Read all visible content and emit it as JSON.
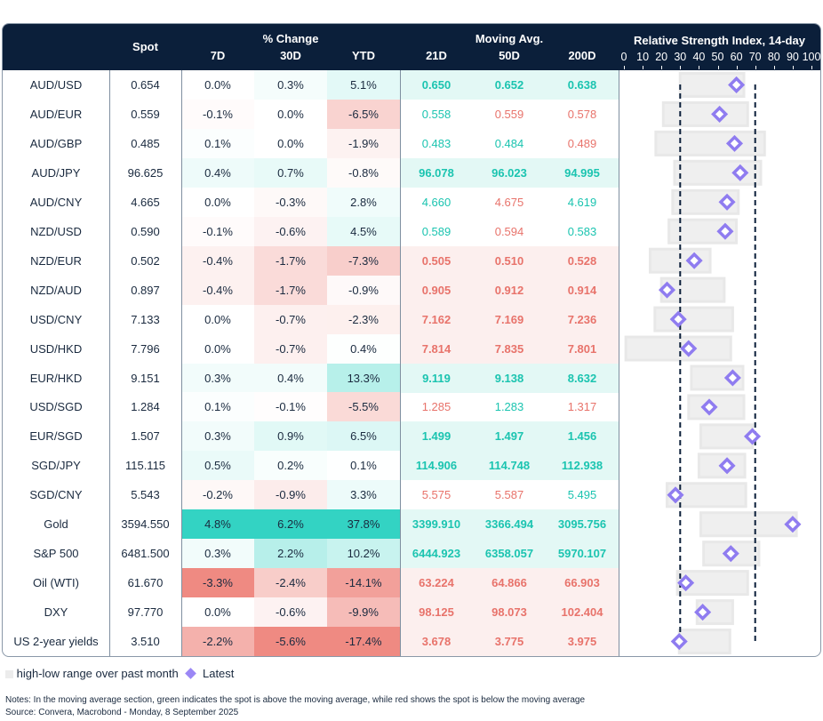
{
  "header": {
    "spot": "Spot",
    "pct_change": "% Change",
    "d7": "7D",
    "d30": "30D",
    "ytd": "YTD",
    "moving_avg": "Moving Avg.",
    "ma21": "21D",
    "ma50": "50D",
    "ma200": "200D",
    "rsi_title": "Relative Strength Index, 14-day",
    "rsi_ticks": [
      "0",
      "10",
      "20",
      "30",
      "40",
      "50",
      "60",
      "70",
      "80",
      "90",
      "100"
    ]
  },
  "colors": {
    "navy": "#0b1f3a",
    "up_text": "#1bc4b0",
    "down_text": "#e8736b",
    "up_fill": "#33d3c3",
    "down_fill": "#ef8a82",
    "up_row": "#e3f8f5",
    "down_row": "#fcefee",
    "range": "#efefef",
    "latest": "#8f7cf0"
  },
  "rsi_chart": {
    "type": "range-dot",
    "xlim": [
      0,
      100
    ],
    "reference_lines": [
      30,
      70
    ]
  },
  "rows": [
    {
      "name": "AUD/USD",
      "spot": "0.654",
      "d7": "0.0%",
      "d30": "0.3%",
      "ytd": "5.1%",
      "ma21": "0.650",
      "ma50": "0.652",
      "ma200": "0.638",
      "rsi_low": 30,
      "rsi_high": 64,
      "rsi_latest": 60
    },
    {
      "name": "AUD/EUR",
      "spot": "0.559",
      "d7": "-0.1%",
      "d30": "0.0%",
      "ytd": "-6.5%",
      "ma21": "0.558",
      "ma50": "0.559",
      "ma200": "0.578",
      "rsi_low": 21,
      "rsi_high": 66,
      "rsi_latest": 51
    },
    {
      "name": "AUD/GBP",
      "spot": "0.485",
      "d7": "0.1%",
      "d30": "0.0%",
      "ytd": "-1.9%",
      "ma21": "0.483",
      "ma50": "0.484",
      "ma200": "0.489",
      "rsi_low": 17,
      "rsi_high": 75,
      "rsi_latest": 59
    },
    {
      "name": "AUD/JPY",
      "spot": "96.625",
      "d7": "0.4%",
      "d30": "0.7%",
      "ytd": "-0.8%",
      "ma21": "96.078",
      "ma50": "96.023",
      "ma200": "94.995",
      "rsi_low": 27,
      "rsi_high": 73,
      "rsi_latest": 62
    },
    {
      "name": "AUD/CNY",
      "spot": "4.665",
      "d7": "0.0%",
      "d30": "-0.3%",
      "ytd": "2.8%",
      "ma21": "4.660",
      "ma50": "4.675",
      "ma200": "4.619",
      "rsi_low": 26,
      "rsi_high": 61,
      "rsi_latest": 55
    },
    {
      "name": "NZD/USD",
      "spot": "0.590",
      "d7": "-0.1%",
      "d30": "-0.6%",
      "ytd": "4.5%",
      "ma21": "0.589",
      "ma50": "0.594",
      "ma200": "0.583",
      "rsi_low": 24,
      "rsi_high": 60,
      "rsi_latest": 54
    },
    {
      "name": "NZD/EUR",
      "spot": "0.502",
      "d7": "-0.4%",
      "d30": "-1.7%",
      "ytd": "-7.3%",
      "ma21": "0.505",
      "ma50": "0.510",
      "ma200": "0.528",
      "rsi_low": 14,
      "rsi_high": 46,
      "rsi_latest": 37.5
    },
    {
      "name": "NZD/AUD",
      "spot": "0.897",
      "d7": "-0.4%",
      "d30": "-1.7%",
      "ytd": "-0.9%",
      "ma21": "0.905",
      "ma50": "0.912",
      "ma200": "0.914",
      "rsi_low": 20,
      "rsi_high": 53.5,
      "rsi_latest": 23
    },
    {
      "name": "USD/CNY",
      "spot": "7.133",
      "d7": "0.0%",
      "d30": "-0.7%",
      "ytd": "-2.3%",
      "ma21": "7.162",
      "ma50": "7.169",
      "ma200": "7.236",
      "rsi_low": 16.5,
      "rsi_high": 58,
      "rsi_latest": 29
    },
    {
      "name": "USD/HKD",
      "spot": "7.796",
      "d7": "0.0%",
      "d30": "-0.7%",
      "ytd": "0.4%",
      "ma21": "7.814",
      "ma50": "7.835",
      "ma200": "7.801",
      "rsi_low": 1,
      "rsi_high": 57,
      "rsi_latest": 34.5
    },
    {
      "name": "EUR/HKD",
      "spot": "9.151",
      "d7": "0.3%",
      "d30": "0.4%",
      "ytd": "13.3%",
      "ma21": "9.119",
      "ma50": "9.138",
      "ma200": "8.632",
      "rsi_low": 36,
      "rsi_high": 63.5,
      "rsi_latest": 58
    },
    {
      "name": "USD/SGD",
      "spot": "1.284",
      "d7": "0.1%",
      "d30": "-0.1%",
      "ytd": "-5.5%",
      "ma21": "1.285",
      "ma50": "1.283",
      "ma200": "1.317",
      "rsi_low": 34.5,
      "rsi_high": 64,
      "rsi_latest": 45.5
    },
    {
      "name": "EUR/SGD",
      "spot": "1.507",
      "d7": "0.3%",
      "d30": "0.9%",
      "ytd": "6.5%",
      "ma21": "1.499",
      "ma50": "1.497",
      "ma200": "1.456",
      "rsi_low": 41,
      "rsi_high": 68.5,
      "rsi_latest": 68.5
    },
    {
      "name": "SGD/JPY",
      "spot": "115.115",
      "d7": "0.5%",
      "d30": "0.2%",
      "ytd": "0.1%",
      "ma21": "114.906",
      "ma50": "114.748",
      "ma200": "112.938",
      "rsi_low": 40,
      "rsi_high": 64.5,
      "rsi_latest": 55
    },
    {
      "name": "SGD/CNY",
      "spot": "5.543",
      "d7": "-0.2%",
      "d30": "-0.9%",
      "ytd": "3.3%",
      "ma21": "5.575",
      "ma50": "5.587",
      "ma200": "5.495",
      "rsi_low": 23,
      "rsi_high": 65,
      "rsi_latest": 27.5
    },
    {
      "name": "Gold",
      "spot": "3594.550",
      "d7": "4.8%",
      "d30": "6.2%",
      "ytd": "37.8%",
      "ma21": "3399.910",
      "ma50": "3366.494",
      "ma200": "3095.756",
      "rsi_low": 41,
      "rsi_high": 92,
      "rsi_latest": 90
    },
    {
      "name": "S&P 500",
      "spot": "6481.500",
      "d7": "0.3%",
      "d30": "2.2%",
      "ytd": "10.2%",
      "ma21": "6444.923",
      "ma50": "6358.057",
      "ma200": "5970.107",
      "rsi_low": 42.5,
      "rsi_high": 72,
      "rsi_latest": 57
    },
    {
      "name": "Oil (WTI)",
      "spot": "61.670",
      "d7": "-3.3%",
      "d30": "-2.4%",
      "ytd": "-14.1%",
      "ma21": "63.224",
      "ma50": "64.866",
      "ma200": "66.903",
      "rsi_low": 28.5,
      "rsi_high": 66,
      "rsi_latest": 33
    },
    {
      "name": "DXY",
      "spot": "97.770",
      "d7": "0.0%",
      "d30": "-0.6%",
      "ytd": "-9.9%",
      "ma21": "98.125",
      "ma50": "98.073",
      "ma200": "102.404",
      "rsi_low": 39,
      "rsi_high": 58,
      "rsi_latest": 42
    },
    {
      "name": "US 2-year yields",
      "spot": "3.510",
      "d7": "-2.2%",
      "d30": "-5.6%",
      "ytd": "-17.4%",
      "ma21": "3.678",
      "ma50": "3.775",
      "ma200": "3.975",
      "rsi_low": 29.5,
      "rsi_high": 56.5,
      "rsi_latest": 29.5
    }
  ],
  "legend": {
    "range": "high-low range over past month",
    "latest": "Latest"
  },
  "notes": "Notes: In the moving average section, green indicates the spot is above the moving average, while red shows the spot is below the moving average",
  "source": "Source: Convera, Macrobond - Monday, 8 September 2025"
}
